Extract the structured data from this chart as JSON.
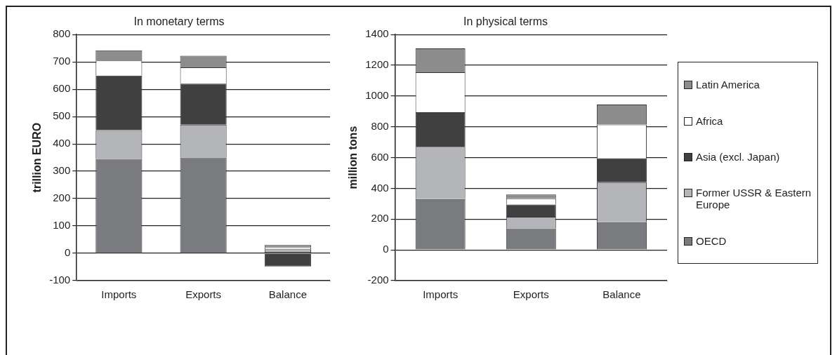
{
  "chart_data": [
    {
      "type": "bar",
      "title": "In monetary terms",
      "ylabel": "trillion EURO",
      "categories": [
        "Imports",
        "Exports",
        "Balance"
      ],
      "stacked": true,
      "ylim": [
        -100,
        800
      ],
      "yticks": [
        -100,
        0,
        100,
        200,
        300,
        400,
        500,
        600,
        700,
        800
      ],
      "grid": "y",
      "legend": false,
      "series": [
        {
          "color": "#7a7b7e",
          "values": [
            345,
            350,
            5
          ]
        },
        {
          "color": "#b4b5b8",
          "values": [
            105,
            120,
            10
          ]
        },
        {
          "color": "#404040",
          "values": [
            200,
            150,
            -48
          ]
        },
        {
          "color": "#ffffff",
          "values": [
            55,
            60,
            7
          ]
        },
        {
          "color": "#8c8c8c",
          "values": [
            37,
            42,
            8
          ]
        }
      ]
    },
    {
      "type": "bar",
      "title": "In physical terms",
      "ylabel": "million tons",
      "categories": [
        "Imports",
        "Exports",
        "Balance"
      ],
      "stacked": true,
      "ylim": [
        -200,
        1400
      ],
      "yticks": [
        -200,
        0,
        200,
        400,
        600,
        800,
        1000,
        1200,
        1400
      ],
      "grid": "y",
      "legend": "right",
      "series": [
        {
          "name": "OECD",
          "color": "#7a7b7e",
          "values": [
            330,
            140,
            180
          ]
        },
        {
          "name": "Former USSR & Eastern Europe",
          "color": "#b4b5b8",
          "values": [
            340,
            75,
            260
          ]
        },
        {
          "name": "Asia (excl. Japan)",
          "color": "#404040",
          "values": [
            225,
            80,
            155
          ]
        },
        {
          "name": "Africa",
          "color": "#ffffff",
          "values": [
            260,
            40,
            220
          ]
        },
        {
          "name": "Latin America",
          "color": "#8c8c8c",
          "values": [
            155,
            25,
            130
          ]
        }
      ]
    }
  ]
}
